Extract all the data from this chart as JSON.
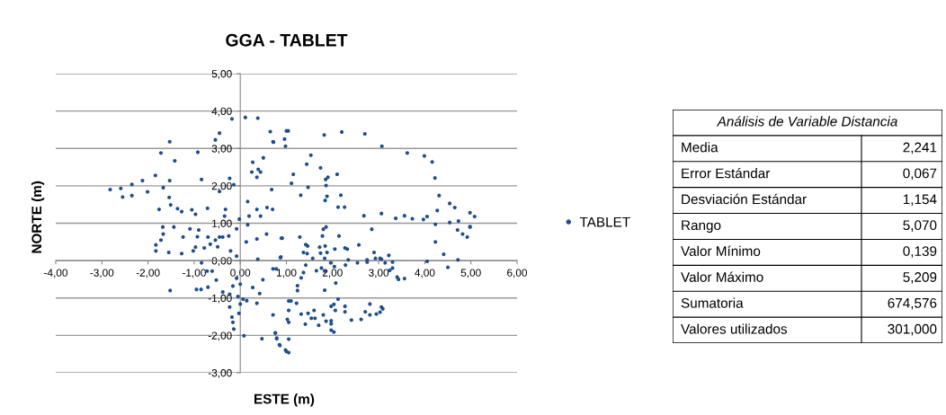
{
  "chart_data": [
    {
      "type": "scatter",
      "title": "GGA - TABLET",
      "xlabel": "ESTE (m)",
      "ylabel": "NORTE (m)",
      "xlim": [
        -4,
        6
      ],
      "ylim": [
        -3,
        5
      ],
      "xticks": [
        {
          "value": -4,
          "label": "-4,00"
        },
        {
          "value": -3,
          "label": "-3,00"
        },
        {
          "value": -2,
          "label": "-2,00"
        },
        {
          "value": -1,
          "label": "-1,00"
        },
        {
          "value": 0,
          "label": "0,00"
        },
        {
          "value": 1,
          "label": "1,00"
        },
        {
          "value": 2,
          "label": "2,00"
        },
        {
          "value": 3,
          "label": "3,00"
        },
        {
          "value": 4,
          "label": "4,00"
        },
        {
          "value": 5,
          "label": "5,00"
        },
        {
          "value": 6,
          "label": "6,00"
        }
      ],
      "yticks": [
        {
          "value": -3,
          "label": "-3,00"
        },
        {
          "value": -2,
          "label": "-2,00"
        },
        {
          "value": -1,
          "label": "-1,00"
        },
        {
          "value": 0,
          "label": "0,00"
        },
        {
          "value": 1,
          "label": "1,00"
        },
        {
          "value": 2,
          "label": "2,00"
        },
        {
          "value": 3,
          "label": "3,00"
        },
        {
          "value": 4,
          "label": "4,00"
        },
        {
          "value": 5,
          "label": "5,00"
        }
      ],
      "grid": "y",
      "legend": "right",
      "marker": "circle",
      "series": [
        {
          "name": "TABLET",
          "color": "#1f4e8c",
          "x": [
            -2.82,
            -2.59,
            -2.55,
            -2.35,
            -2.35,
            -2.12,
            -2.01,
            -1.84,
            -1.76,
            -1.72,
            -1.67,
            -1.53,
            -1.53,
            -1.54,
            -1.42,
            -1.51,
            -1.36,
            -1.27,
            -1.05,
            -0.97,
            -0.92,
            -0.84,
            -0.71,
            -0.54,
            -0.45,
            -0.45,
            -0.32,
            -0.34,
            -0.23,
            -0.18,
            -0.14,
            -0.02,
            0.11,
            0.16,
            0.19,
            0.27,
            0.25,
            0.38,
            0.39,
            0.36,
            0.44,
            0.5,
            0.36,
            0.44,
            0.58,
            0.65,
            0.7,
            0.71,
            0.68,
            1.0,
            1.04,
            0.96,
            0.72,
            0.98,
            1.82,
            2.2,
            2.7,
            3.07,
            1.53,
            1.44,
            1.74,
            1.15,
            1.11,
            2.1,
            1.85,
            1.9,
            1.86,
            1.31,
            1.47,
            1.88,
            1.84,
            2.18,
            2.12,
            2.26,
            3.62,
            3.99,
            4.16,
            4.22,
            4.31,
            4.27,
            4.54,
            4.65,
            2.68,
            3.06,
            3.37,
            3.56,
            3.73,
            3.97,
            4.05,
            4.23,
            4.54,
            4.73,
            4.98,
            5.08,
            4.98,
            -1.68,
            -1.83,
            -1.83,
            -1.72,
            -1.67,
            -1.55,
            -1.44,
            -1.27,
            -1.24,
            -1.09,
            -1.02,
            -0.97,
            -0.93,
            -0.9,
            -0.78,
            -0.7,
            -0.65,
            -0.54,
            -0.45,
            -0.49,
            -0.38,
            -0.25,
            -0.21,
            -0.08,
            -0.08,
            -0.84,
            -0.72,
            -0.61,
            -0.52,
            -1.52,
            -0.95,
            -0.85,
            -0.7,
            -0.38,
            -0.23,
            -0.16,
            -0.08,
            0.0,
            -0.05,
            0.06,
            0.0,
            0.14,
            0.27,
            0.36,
            0.42,
            -0.23,
            -0.18,
            -0.16,
            -0.14,
            -0.03,
            0.08,
            0.16,
            0.13,
            0.36,
            0.38,
            0.57,
            0.47,
            0.71,
            0.76,
            0.79,
            0.85,
            1.0,
            0.89,
            0.87,
            0.49,
            0.91,
            0.88,
            0.71,
            0.78,
            1.29,
            1.42,
            1.46,
            1.37,
            1.45,
            1.42,
            1.37,
            1.32,
            1.24,
            1.24,
            1.57,
            1.72,
            1.74,
            1.76,
            1.65,
            1.78,
            1.8,
            1.86,
            1.84,
            1.88,
            1.83,
            1.83,
            1.83,
            1.96,
            2.04,
            2.07,
            2.05,
            2.14,
            2.27,
            2.32,
            2.34,
            2.28,
            2.54,
            2.57,
            2.75,
            2.75,
            2.85,
            2.9,
            2.93,
            3.03,
            3.06,
            3.14,
            3.22,
            3.3,
            3.3,
            3.24,
            3.4,
            3.43,
            3.56,
            4.05,
            4.23,
            4.41,
            4.5,
            4.72,
            4.71,
            4.82,
            4.92,
            4.98,
            1.05,
            1.1,
            1.22,
            1.05,
            1.02,
            1.05,
            0.76,
            0.79,
            1.05,
            0.86,
            0.98,
            1.05,
            1.32,
            1.41,
            1.47,
            1.54,
            1.6,
            1.62,
            1.7,
            1.8,
            1.86,
            1.97,
            1.97,
            1.97,
            2.03,
            1.97,
            2.03,
            2.06,
            2.12,
            2.27,
            2.27,
            2.41,
            2.62,
            2.71,
            2.81,
            2.81,
            2.95,
            3.03,
            3.06,
            3.09
          ],
          "values": [
            1.9,
            1.93,
            1.7,
            2.04,
            1.74,
            2.14,
            1.84,
            2.28,
            1.37,
            2.88,
            1.95,
            3.18,
            2.14,
            1.69,
            2.67,
            1.49,
            1.39,
            1.31,
            1.36,
            1.24,
            2.9,
            2.17,
            1.4,
            3.23,
            3.41,
            1.85,
            1.37,
            1.19,
            2.2,
            3.79,
            2.03,
            1.11,
            3.83,
            1.58,
            1.19,
            2.63,
            2.37,
            3.81,
            2.44,
            2.23,
            2.37,
            2.75,
            1.37,
            1.19,
            1.42,
            3.45,
            1.37,
            3.18,
            1.9,
            3.47,
            3.47,
            3.25,
            3.17,
            3.06,
            3.36,
            3.44,
            3.39,
            3.06,
            2.82,
            2.58,
            2.48,
            2.31,
            2.07,
            2.31,
            2.17,
            2.23,
            2.01,
            1.75,
            1.96,
            1.72,
            1.61,
            1.75,
            1.43,
            1.43,
            2.88,
            2.8,
            2.64,
            2.21,
            1.74,
            1.34,
            1.53,
            1.42,
            1.2,
            1.26,
            1.13,
            1.2,
            1.12,
            1.1,
            1.18,
            0.97,
            1.02,
            1.06,
            1.28,
            1.18,
            0.91,
            0.9,
            0.42,
            0.26,
            0.55,
            0.71,
            0.22,
            0.9,
            0.19,
            0.63,
            0.85,
            0.26,
            0.36,
            0.64,
            0.82,
            0.34,
            0.63,
            0.44,
            0.55,
            0.63,
            0.37,
            0.63,
            0.66,
            0.26,
            0.85,
            0.12,
            -0.06,
            -0.28,
            -0.28,
            -0.52,
            -0.8,
            -0.77,
            -0.77,
            -0.71,
            -0.84,
            -0.9,
            -0.68,
            -0.47,
            -0.63,
            -0.96,
            -1.03,
            -1.16,
            -1.07,
            -0.72,
            -1.14,
            -0.88,
            -1.24,
            -1.51,
            -1.65,
            -1.83,
            -1.41,
            -2.01,
            0.96,
            0.5,
            0.58,
            0.04,
            0.71,
            -2.09,
            -1.45,
            -1.93,
            -2.09,
            -2.25,
            -2.43,
            0.6,
            0.08,
            -0.51,
            0.6,
            0.1,
            -0.22,
            -0.22,
            0.63,
            0.43,
            0.39,
            0.22,
            0.19,
            -0.12,
            -0.32,
            -0.46,
            -0.67,
            -0.8,
            0.06,
            0.36,
            0.2,
            -0.2,
            -0.27,
            0.66,
            0.84,
            0.9,
            0.39,
            0.22,
            0.06,
            -0.28,
            -0.79,
            -0.06,
            -0.16,
            -0.6,
            0.31,
            0.66,
            0.34,
            0.31,
            0.02,
            -0.12,
            -0.06,
            0.42,
            0.02,
            -0.04,
            0.84,
            0.22,
            0.06,
            0.06,
            0.04,
            -0.06,
            0.14,
            -0.04,
            -0.2,
            -0.26,
            -0.44,
            -0.5,
            -0.48,
            -0.02,
            0.5,
            0.17,
            -0.18,
            0.02,
            0.82,
            0.71,
            0.63,
            0.9,
            -1.08,
            -1.08,
            -1.14,
            -1.33,
            -1.57,
            -1.65,
            -1.94,
            -2.07,
            -2.1,
            -2.27,
            -2.39,
            -2.46,
            -1.43,
            -1.7,
            -1.41,
            -1.54,
            -1.33,
            -1.54,
            -1.73,
            -1.45,
            -1.62,
            -1.61,
            -1.69,
            -1.86,
            -1.91,
            -1.22,
            -1.17,
            -1.33,
            -1.03,
            -1.22,
            -1.37,
            -1.59,
            -1.57,
            -1.37,
            -1.16,
            -1.45,
            -1.43,
            -1.38,
            -1.24,
            -1.29
          ]
        }
      ]
    },
    {
      "type": "other",
      "title": "Análisis de Variable Distancia",
      "categories": [
        "Media",
        "Error Estándar",
        "Desviación Estándar",
        "Rango",
        "Valor Mínimo",
        "Valor Máximo",
        "Sumatoria",
        "Valores utilizados"
      ],
      "value_labels": [
        "2,241",
        "0,067",
        "1,154",
        "5,070",
        "0,139",
        "5,209",
        "674,576",
        "301,000"
      ]
    }
  ]
}
